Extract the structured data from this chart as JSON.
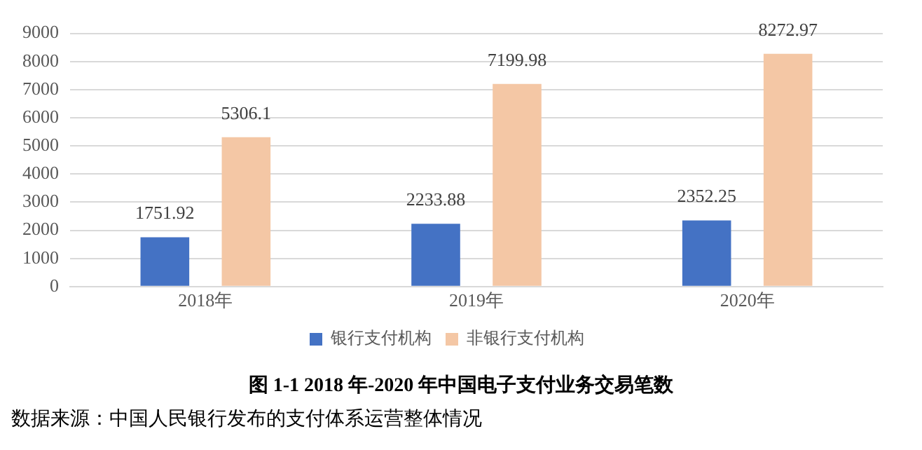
{
  "chart_data": {
    "type": "bar",
    "title": "图 1-1 2018 年-2020 年中国电子支付业务交易笔数",
    "annotations": [
      "数据来源：中国人民银行发布的支付体系运营整体情况"
    ],
    "categories": [
      "2018年",
      "2019年",
      "2020年"
    ],
    "series": [
      {
        "name": "银行支付机构",
        "color": "#4472c4",
        "values": [
          1751.92,
          2233.88,
          2352.25
        ]
      },
      {
        "name": "非银行支付机构",
        "color": "#f4c7a5",
        "values": [
          5306.1,
          7199.98,
          8272.97
        ]
      }
    ],
    "ylim": [
      0,
      9000
    ],
    "yticks": [
      0,
      1000,
      2000,
      3000,
      4000,
      5000,
      6000,
      7000,
      8000,
      9000
    ],
    "grid": "y",
    "legend": "bottom",
    "data_labels": true
  }
}
